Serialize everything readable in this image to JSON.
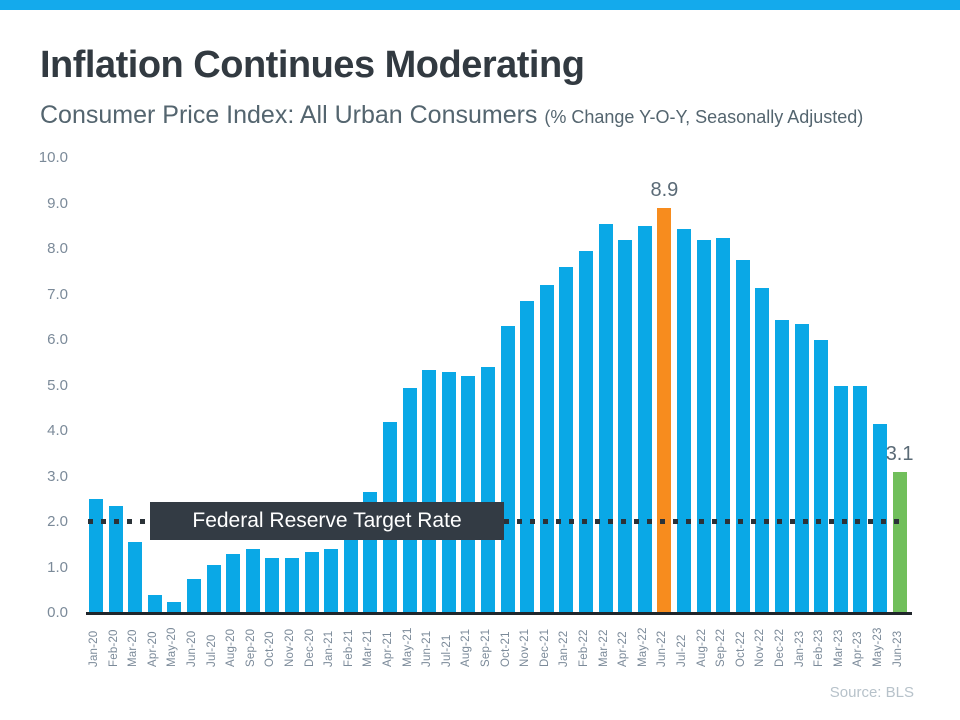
{
  "header": {
    "accent_color": "#14aaec"
  },
  "footer": {
    "source": "Source: BLS"
  },
  "chart_data": {
    "type": "bar",
    "title": "Inflation Continues Moderating",
    "subtitle": "Consumer Price Index: All Urban Consumers",
    "subtitle_note": "(% Change Y-O-Y, Seasonally Adjusted)",
    "categories": [
      "Jan-20",
      "Feb-20",
      "Mar-20",
      "Apr-20",
      "May-20",
      "Jun-20",
      "Jul-20",
      "Aug-20",
      "Sep-20",
      "Oct-20",
      "Nov-20",
      "Dec-20",
      "Jan-21",
      "Feb-21",
      "Mar-21",
      "Apr-21",
      "May-21",
      "Jun-21",
      "Jul-21",
      "Aug-21",
      "Sep-21",
      "Oct-21",
      "Nov-21",
      "Dec-21",
      "Jan-22",
      "Feb-22",
      "Mar-22",
      "Apr-22",
      "May-22",
      "Jun-22",
      "Jul-22",
      "Aug-22",
      "Sep-22",
      "Oct-22",
      "Nov-22",
      "Dec-22",
      "Jan-23",
      "Feb-23",
      "Mar-23",
      "Apr-23",
      "May-23",
      "Jun-23"
    ],
    "values": [
      2.5,
      2.35,
      1.55,
      0.4,
      0.25,
      0.75,
      1.05,
      1.3,
      1.4,
      1.2,
      1.2,
      1.35,
      1.4,
      1.6,
      2.65,
      4.2,
      4.95,
      5.35,
      5.3,
      5.2,
      5.4,
      6.3,
      6.85,
      7.2,
      7.6,
      7.95,
      8.55,
      8.2,
      8.5,
      8.9,
      8.45,
      8.2,
      8.25,
      7.75,
      7.15,
      6.45,
      6.35,
      6.0,
      5.0,
      5.0,
      4.15,
      3.1
    ],
    "y_tick_labels": [
      "10.0",
      "9.0",
      "8.0",
      "7.0",
      "6.0",
      "5.0",
      "4.0",
      "3.0",
      "2.0",
      "1.0",
      "0.0"
    ],
    "ylim": [
      0,
      10
    ],
    "xlabel": "",
    "ylabel": "",
    "grid": false,
    "legend": false,
    "bar_color": "#0aa8e6",
    "highlights": [
      {
        "index": 29,
        "color": "#f78c1e",
        "label": "8.9"
      },
      {
        "index": 41,
        "color": "#71bf5b",
        "label": "3.1"
      }
    ],
    "reference_line": {
      "value": 2.0,
      "label": "Federal Reserve Target Rate",
      "style": "dotted",
      "color": "#2b3238"
    }
  }
}
